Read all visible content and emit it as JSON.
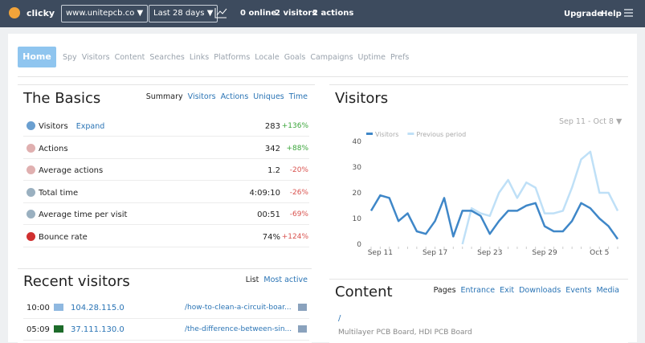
{
  "topbar": {
    "logo": "clicky",
    "site": "www.unitepcb.co ▼",
    "range": "Last 28 days ▼",
    "online": "0 online",
    "visitors": "2 visitors",
    "actions": "2 actions",
    "upgrade": "Upgrade",
    "help": "Help"
  },
  "nav": [
    "Home",
    "Spy",
    "Visitors",
    "Content",
    "Searches",
    "Links",
    "Platforms",
    "Locale",
    "Goals",
    "Campaigns",
    "Uptime",
    "Prefs"
  ],
  "basics": {
    "title": "The Basics",
    "tabs": [
      "Summary",
      "Visitors",
      "Actions",
      "Uniques",
      "Time"
    ],
    "rows": [
      {
        "label": "Visitors",
        "link": "Expand",
        "value": "283",
        "change": "+136%"
      },
      {
        "label": "Actions",
        "value": "342",
        "change": "+88%"
      },
      {
        "label": "Average actions",
        "value": "1.2",
        "change": "-20%"
      },
      {
        "label": "Total time",
        "value": "4:09:10",
        "change": "-26%"
      },
      {
        "label": "Average time per visit",
        "value": "00:51",
        "change": "-69%"
      },
      {
        "label": "Bounce rate",
        "value": "74%",
        "change": "+124%"
      }
    ]
  },
  "visitors_panel": {
    "title": "Visitors",
    "range": "Sep 11 - Oct 8 ▼"
  },
  "chart_data": {
    "type": "line",
    "categories": [
      null,
      "Sep 11",
      null,
      null,
      null,
      null,
      null,
      "Sep 17",
      null,
      null,
      null,
      null,
      null,
      "Sep 23",
      null,
      null,
      null,
      null,
      null,
      "Sep 29",
      null,
      null,
      null,
      null,
      null,
      "Oct 5",
      null,
      null
    ],
    "series": [
      {
        "name": "Visitors",
        "color": "#3f87c8",
        "values": [
          13,
          19,
          18,
          9,
          12,
          5,
          4,
          9,
          18,
          3,
          13,
          13,
          11,
          4,
          9,
          13,
          13,
          15,
          16,
          7,
          5,
          5,
          9,
          16,
          14,
          10,
          7,
          2
        ]
      },
      {
        "name": "Previous period",
        "color": "#bfe0f7",
        "values": [
          null,
          null,
          null,
          null,
          null,
          null,
          null,
          null,
          null,
          null,
          0,
          14,
          12,
          11,
          20,
          25,
          18,
          24,
          22,
          12,
          12,
          13,
          22,
          33,
          36,
          20,
          20,
          13
        ]
      }
    ],
    "ylim": [
      0,
      40
    ],
    "yticks": [
      0,
      10,
      20,
      30,
      40
    ],
    "grid": false
  },
  "recent": {
    "title": "Recent visitors",
    "tabs": [
      "List",
      "Most active"
    ],
    "rows": [
      {
        "time": "10:00",
        "ip": "104.28.115.0",
        "url": "/how-to-clean-a-circuit-boar..."
      },
      {
        "time": "05:09",
        "ip": "37.111.130.0",
        "url": "/the-difference-between-sin..."
      }
    ]
  },
  "content": {
    "title": "Content",
    "tabs": [
      "Pages",
      "Entrance",
      "Exit",
      "Downloads",
      "Events",
      "Media"
    ],
    "rows": [
      {
        "path": "/",
        "page_title": "Multilayer PCB Board, HDI PCB Board"
      }
    ]
  }
}
